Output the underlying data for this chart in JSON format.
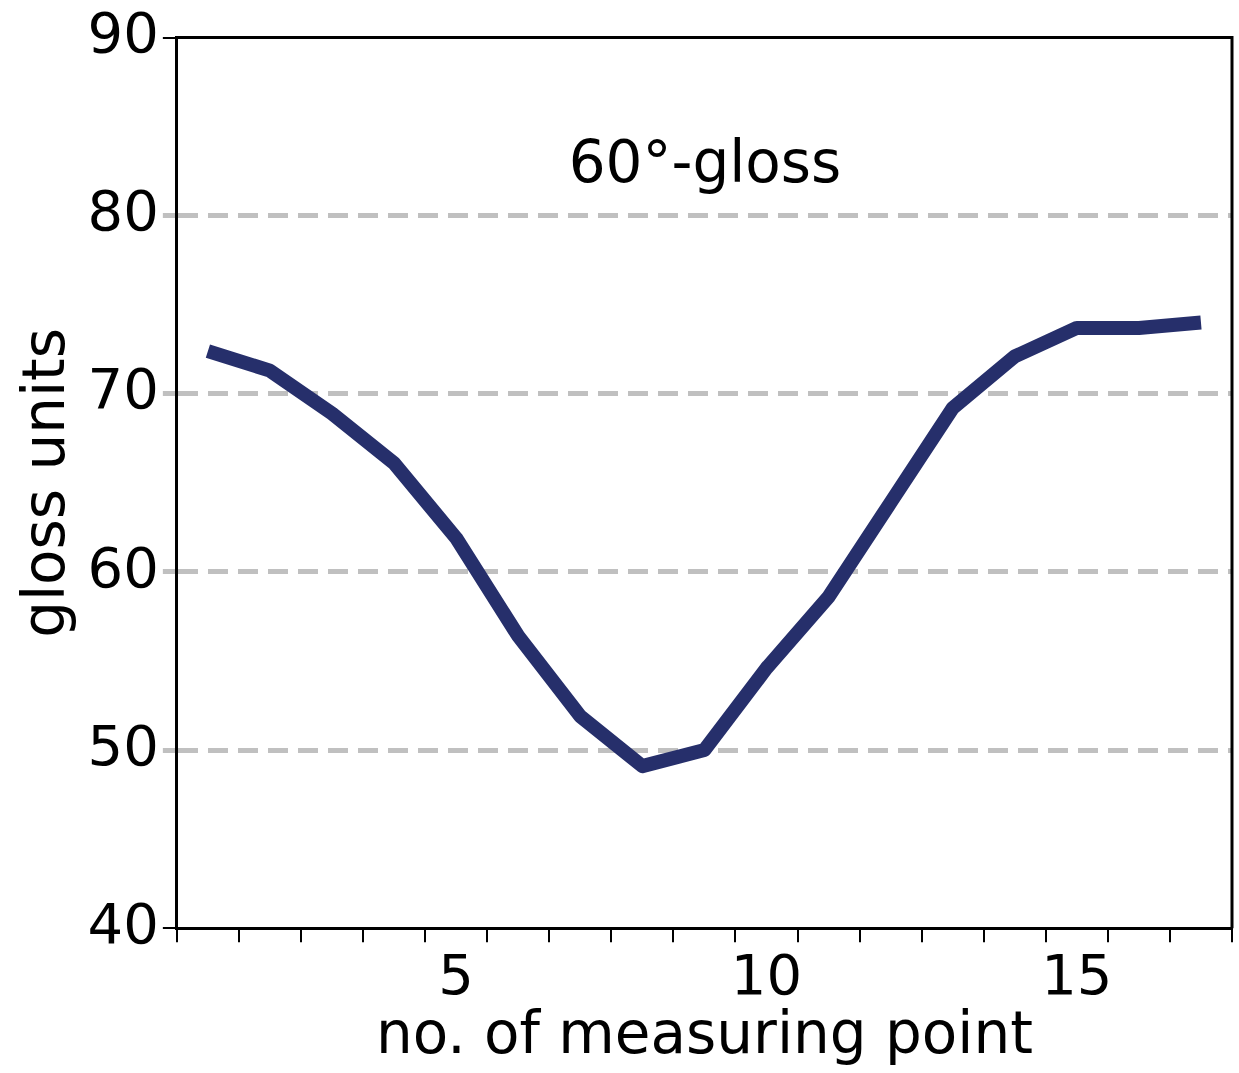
{
  "chart_data": {
    "type": "line",
    "title": "60°-gloss",
    "xlabel": "no. of measuring point",
    "ylabel": "gloss units",
    "categories": [
      null,
      null,
      null,
      null,
      "5",
      null,
      null,
      null,
      null,
      "10",
      null,
      null,
      null,
      null,
      "15",
      null,
      null
    ],
    "series": [
      {
        "color": "#262f6b",
        "values": [
          72.4,
          71.3,
          68.9,
          66.1,
          61.9,
          56.4,
          51.9,
          49.1,
          50.0,
          54.6,
          58.6,
          63.9,
          69.2,
          72.1,
          73.7,
          73.7,
          74.0
        ]
      }
    ],
    "ylim": [
      40,
      90
    ],
    "yticks": [
      40,
      50,
      60,
      70,
      80,
      90
    ],
    "grid": "y",
    "legend": false,
    "marker": "none",
    "line_style": "solid"
  }
}
